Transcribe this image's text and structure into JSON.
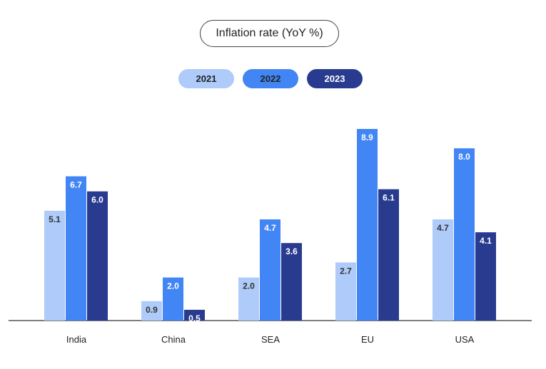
{
  "colors": {
    "2021": "#aecbfa",
    "2022": "#4285f4",
    "2023": "#283b8f",
    "axis": "#555555"
  },
  "chart_data": {
    "type": "bar",
    "title": "Inflation rate (YoY %)",
    "categories": [
      "India",
      "China",
      "SEA",
      "EU",
      "USA"
    ],
    "series": [
      {
        "name": "2021",
        "values": [
          5.1,
          0.9,
          2.0,
          2.7,
          4.7
        ]
      },
      {
        "name": "2022",
        "values": [
          6.7,
          2.0,
          4.7,
          8.9,
          8.0
        ]
      },
      {
        "name": "2023",
        "values": [
          6.0,
          0.5,
          3.6,
          6.1,
          4.1
        ]
      }
    ],
    "ylim": [
      0,
      8.9
    ],
    "grid": false,
    "legend_position": "top-center"
  }
}
